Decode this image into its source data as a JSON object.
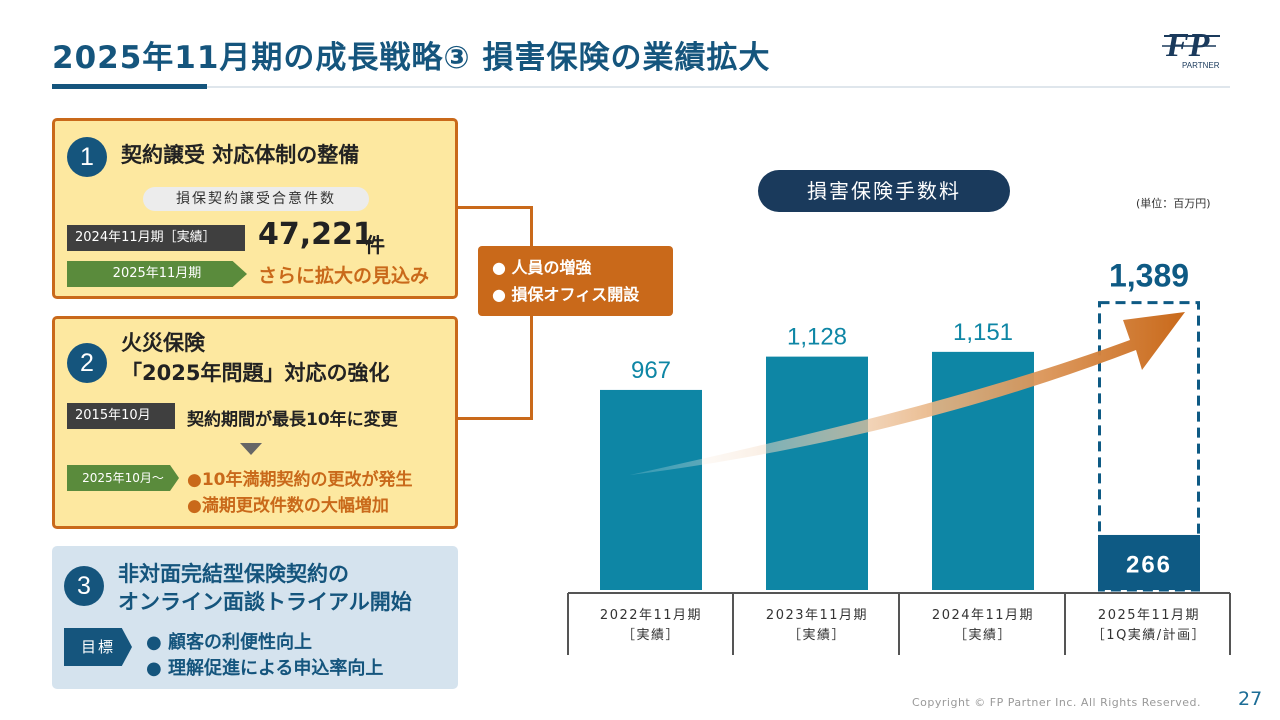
{
  "header": {
    "title": "2025年11月期の成長戦略③ 損害保険の業績拡大",
    "logo_text": "PARTNER"
  },
  "section1": {
    "number": "1",
    "heading": "契約譲受 対応体制の整備",
    "pill": "損保契約譲受合意件数",
    "actual_tag": "2024年11月期［実績］",
    "actual_value": "47,221",
    "actual_unit": "件",
    "plan_tag": "2025年11月期",
    "plan_text": "さらに拡大の見込み"
  },
  "section2": {
    "number": "2",
    "heading_line1": "火災保険",
    "heading_line2": "「2025年問題」対応の強化",
    "tag1": "2015年10月",
    "text1": "契約期間が最長10年に変更",
    "tag2": "2025年10月～",
    "bullet1": "●10年満期契約の更改が発生",
    "bullet2": "●満期更改件数の大幅増加"
  },
  "section3": {
    "number": "3",
    "heading_line1": "非対面完結型保険契約の",
    "heading_line2": "オンライン面談トライアル開始",
    "goal_tag": "目標",
    "goal1": "● 顧客の利便性向上",
    "goal2": "● 理解促進による申込率向上"
  },
  "callout": {
    "item1": "● 人員の増強",
    "item2": "● 損保オフィス開設"
  },
  "chart_header": {
    "title": "損害保険手数料",
    "unit": "(単位：百万円)"
  },
  "chart_data": {
    "type": "bar",
    "title": "損害保険手数料",
    "unit": "(単位：百万円)",
    "categories": [
      [
        "2022年11月期",
        "［実績］"
      ],
      [
        "2023年11月期",
        "［実績］"
      ],
      [
        "2024年11月期",
        "［実績］"
      ],
      [
        "2025年11月期",
        "［1Q実績/計画］"
      ]
    ],
    "values": [
      967,
      1128,
      1151,
      1389
    ],
    "value_labels": [
      "967",
      "1,128",
      "1,151",
      "1,389"
    ],
    "q1_actual": 266,
    "q1_actual_label": "266",
    "ylim": [
      0,
      1450
    ],
    "colors": {
      "bar": "#0e86a5",
      "plan_outline": "#0e5a84",
      "q1_bar": "#0e5a84",
      "arrow": "#c9691a"
    }
  },
  "footer": {
    "copyright": "Copyright © FP Partner Inc. All Rights Reserved.",
    "page": "27"
  }
}
